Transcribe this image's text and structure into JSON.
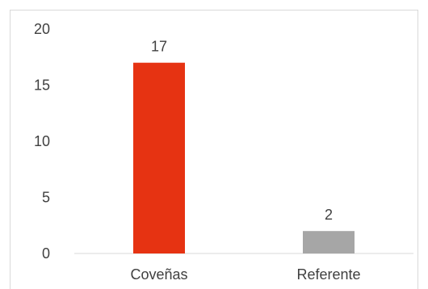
{
  "chart_data": {
    "type": "bar",
    "categories": [
      "Coveñas",
      "Referente"
    ],
    "values": [
      17,
      2
    ],
    "data_labels": [
      "17",
      "2"
    ],
    "colors": [
      "#e63312",
      "#a6a6a6"
    ],
    "y_ticks": [
      "0",
      "5",
      "10",
      "15",
      "20"
    ],
    "y_tick_values": [
      0,
      5,
      10,
      15,
      20
    ],
    "ylim": [
      0,
      20
    ],
    "title": "",
    "xlabel": "",
    "ylabel": "",
    "grid": false,
    "legend": "none"
  }
}
